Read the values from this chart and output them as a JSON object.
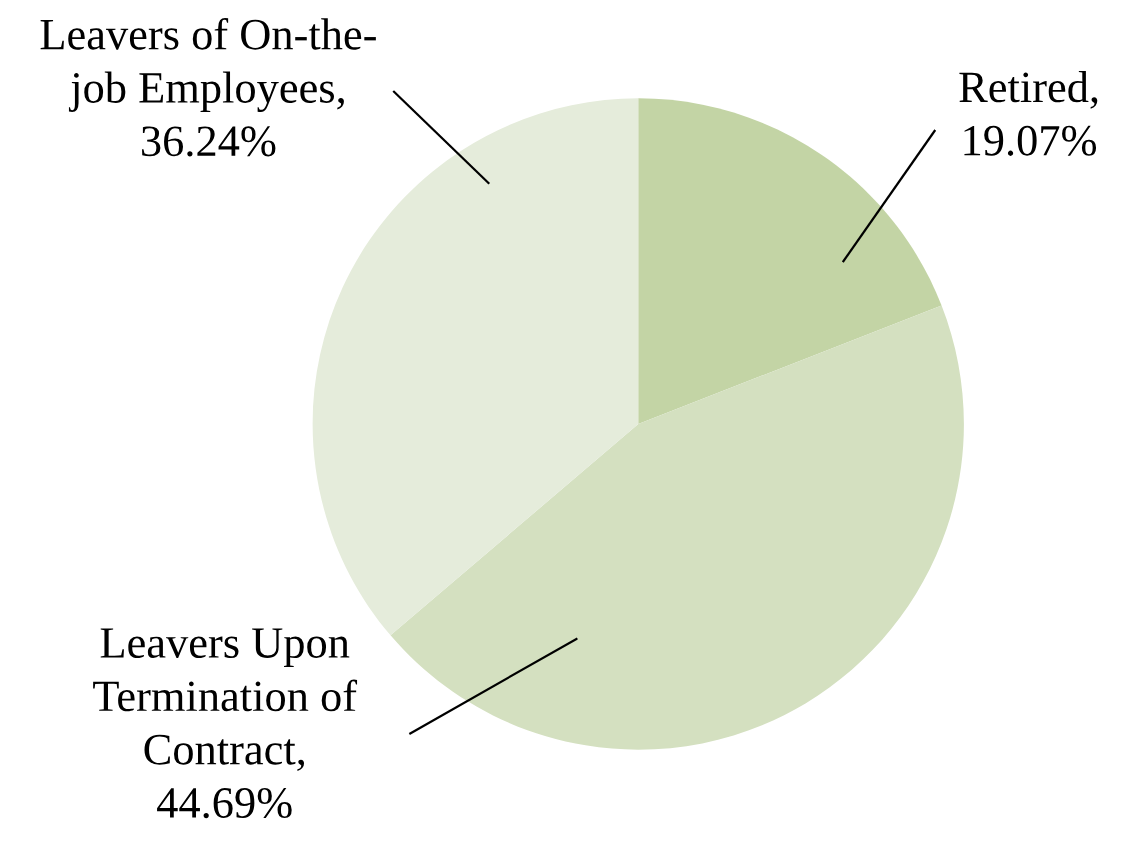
{
  "chart_data": {
    "type": "pie",
    "categories": [
      "Retired",
      "Leavers Upon Termination of Contract",
      "Leavers of On-the-job Employees"
    ],
    "values": [
      19.07,
      44.69,
      36.24
    ],
    "colors": [
      "#c3d4a5",
      "#d4e0c0",
      "#e5ecdb"
    ],
    "value_labels": [
      ",\n19.07%",
      ",\n44.69%",
      ",\n36.24%"
    ],
    "legend": false
  }
}
